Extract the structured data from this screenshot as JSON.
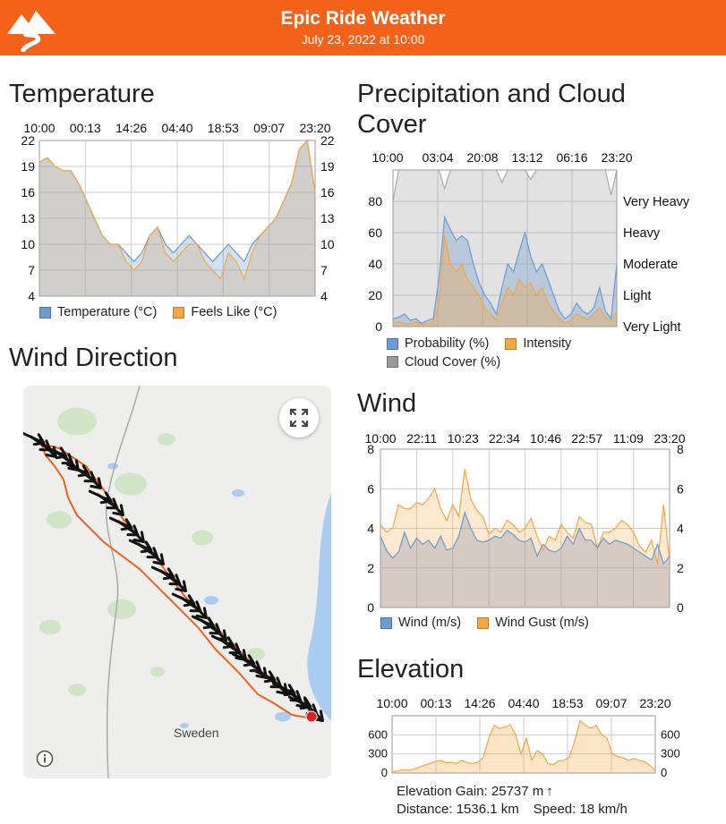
{
  "header": {
    "title": "Epic Ride Weather",
    "subtitle": "July 23, 2022 at 10:00",
    "bg_color": "#f4621a"
  },
  "temperature": {
    "title": "Temperature",
    "time_labels": [
      "10:00",
      "00:13",
      "14:26",
      "04:40",
      "18:53",
      "09:07",
      "23:20"
    ],
    "y_ticks": [
      "22",
      "19",
      "16",
      "13",
      "10",
      "7",
      "4"
    ],
    "legend": [
      {
        "label": "Temperature (°C)",
        "color": "#6b9bd2"
      },
      {
        "label": "Feels Like (°C)",
        "color": "#f4a742"
      }
    ]
  },
  "precipitation": {
    "title_line1": "Precipitation and Cloud",
    "title_line2": "Cover",
    "time_labels": [
      "10:00",
      "03:04",
      "20:08",
      "13:12",
      "06:16",
      "23:20"
    ],
    "y_ticks": [
      "80",
      "60",
      "40",
      "20",
      "0"
    ],
    "intensity_labels": [
      "Very Heavy",
      "Heavy",
      "Moderate",
      "Light",
      "Very Light"
    ],
    "legend": [
      {
        "label": "Probability (%)",
        "color": "#6b9bd2"
      },
      {
        "label": "Intensity",
        "color": "#f4a742"
      },
      {
        "label": "Cloud Cover (%)",
        "color": "#9a9a9a"
      }
    ]
  },
  "wind_direction": {
    "title": "Wind Direction",
    "map_label": "Sweden",
    "expand_icon": "expand-icon",
    "info_icon": "info-icon"
  },
  "wind": {
    "title": "Wind",
    "time_labels": [
      "10:00",
      "22:11",
      "10:23",
      "22:34",
      "10:46",
      "22:57",
      "11:09",
      "23:20"
    ],
    "y_ticks": [
      "8",
      "6",
      "4",
      "2",
      "0"
    ],
    "legend": [
      {
        "label": "Wind (m/s)",
        "color": "#6b9bd2"
      },
      {
        "label": "Wind Gust (m/s)",
        "color": "#f4a742"
      }
    ]
  },
  "elevation": {
    "title": "Elevation",
    "time_labels": [
      "10:00",
      "00:13",
      "14:26",
      "04:40",
      "18:53",
      "09:07",
      "23:20"
    ],
    "y_ticks": [
      "600",
      "300",
      "0"
    ],
    "gain_text": "Elevation Gain: 25737 m",
    "gain_arrow": "↑",
    "distance_text": "Distance: 1536.1 km",
    "speed_text": "Speed: 18 km/h"
  },
  "chart_data": [
    {
      "type": "area",
      "name": "temperature",
      "ylim": [
        4,
        22
      ],
      "y_ticks": [
        22,
        19,
        16,
        13,
        10,
        7,
        4
      ],
      "x_labels": [
        "10:00",
        "00:13",
        "14:26",
        "04:40",
        "18:53",
        "09:07",
        "23:20"
      ],
      "series": [
        {
          "name": "Temperature (°C)",
          "values": [
            19.5,
            20,
            19,
            18.5,
            18.5,
            17,
            15,
            13,
            11,
            10,
            10,
            9,
            8,
            9,
            11,
            12,
            10,
            9,
            10,
            11,
            10,
            9,
            8,
            9,
            10,
            9,
            8,
            10,
            11,
            12,
            13,
            15,
            17,
            21,
            22,
            16
          ]
        },
        {
          "name": "Feels Like (°C)",
          "values": [
            19.5,
            20,
            19,
            18.5,
            18.5,
            17,
            15,
            13,
            11,
            10,
            10,
            8,
            7,
            8,
            11,
            12,
            9,
            8,
            9,
            10,
            10,
            8,
            7,
            6,
            9,
            8,
            6,
            9,
            11,
            12,
            13,
            15,
            17,
            21,
            22,
            16
          ]
        }
      ]
    },
    {
      "type": "area",
      "name": "precipitation",
      "ylim": [
        0,
        100
      ],
      "y_ticks": [
        80,
        60,
        40,
        20,
        0
      ],
      "x_labels": [
        "10:00",
        "03:04",
        "20:08",
        "13:12",
        "06:16",
        "23:20"
      ],
      "series": [
        {
          "name": "Cloud Cover (%)",
          "values": [
            80,
            100,
            100,
            100,
            100,
            100,
            100,
            100,
            100,
            88,
            100,
            100,
            100,
            100,
            100,
            100,
            100,
            100,
            100,
            92,
            100,
            100,
            100,
            100,
            94,
            100,
            100,
            100,
            100,
            100,
            100,
            100,
            100,
            100,
            100,
            100,
            100,
            100,
            84,
            100
          ]
        },
        {
          "name": "Probability (%)",
          "values": [
            5,
            6,
            8,
            4,
            5,
            2,
            4,
            5,
            30,
            70,
            62,
            55,
            58,
            55,
            40,
            28,
            20,
            15,
            8,
            25,
            40,
            35,
            48,
            60,
            45,
            35,
            40,
            30,
            20,
            10,
            5,
            8,
            15,
            10,
            8,
            12,
            25,
            10,
            5,
            40
          ]
        },
        {
          "name": "Intensity",
          "values": [
            2,
            3,
            2,
            2,
            3,
            1,
            2,
            3,
            15,
            58,
            40,
            35,
            40,
            30,
            25,
            20,
            12,
            8,
            4,
            15,
            25,
            20,
            30,
            25,
            28,
            20,
            25,
            15,
            10,
            5,
            2,
            4,
            8,
            6,
            5,
            8,
            12,
            6,
            3,
            10
          ]
        }
      ]
    },
    {
      "type": "area",
      "name": "wind",
      "ylim": [
        0,
        8
      ],
      "y_ticks": [
        8,
        6,
        4,
        2,
        0
      ],
      "x_labels": [
        "10:00",
        "22:11",
        "10:23",
        "22:34",
        "10:46",
        "22:57",
        "11:09",
        "23:20"
      ],
      "series": [
        {
          "name": "Wind Gust (m/s)",
          "values": [
            4.2,
            3.8,
            4.0,
            5.2,
            5.0,
            5.0,
            5.3,
            5.2,
            5.5,
            6.0,
            5.0,
            4.4,
            5.2,
            4.6,
            7.0,
            5.5,
            4.9,
            4.6,
            3.7,
            4.0,
            3.8,
            4.4,
            4.2,
            3.8,
            4.0,
            4.5,
            3.6,
            2.9,
            3.6,
            3.4,
            4.2,
            3.8,
            3.5,
            4.6,
            4.3,
            4.2,
            3.0,
            3.8,
            3.8,
            4.0,
            4.4,
            4.2,
            3.8,
            3.1,
            2.8,
            3.4,
            2.2,
            5.2,
            2.3
          ]
        },
        {
          "name": "Wind (m/s)",
          "values": [
            3.6,
            2.9,
            2.5,
            2.8,
            3.8,
            3.0,
            3.5,
            3.2,
            3.4,
            3.0,
            3.6,
            2.9,
            3.0,
            3.6,
            4.8,
            4.0,
            3.4,
            3.3,
            3.4,
            3.6,
            3.5,
            3.9,
            3.7,
            3.4,
            3.3,
            3.5,
            2.6,
            3.2,
            2.9,
            2.8,
            3.0,
            3.6,
            3.2,
            4.0,
            3.4,
            3.4,
            3.0,
            3.5,
            3.2,
            3.4,
            3.3,
            3.2,
            3.0,
            2.8,
            2.6,
            2.4,
            3.2,
            2.2,
            2.6
          ]
        }
      ]
    },
    {
      "type": "area",
      "name": "elevation",
      "ylim": [
        0,
        900
      ],
      "y_ticks": [
        600,
        300,
        0
      ],
      "x_labels": [
        "10:00",
        "00:13",
        "14:26",
        "04:40",
        "18:53",
        "09:07",
        "23:20"
      ],
      "series": [
        {
          "name": "Elevation",
          "values": [
            20,
            30,
            50,
            40,
            60,
            90,
            120,
            150,
            180,
            200,
            160,
            170,
            150,
            200,
            160,
            150,
            170,
            250,
            550,
            750,
            700,
            720,
            760,
            600,
            300,
            550,
            200,
            350,
            300,
            150,
            130,
            190,
            200,
            250,
            500,
            820,
            750,
            700,
            750,
            600,
            550,
            300,
            260,
            240,
            200,
            230,
            200,
            180,
            120,
            40
          ]
        }
      ]
    }
  ]
}
